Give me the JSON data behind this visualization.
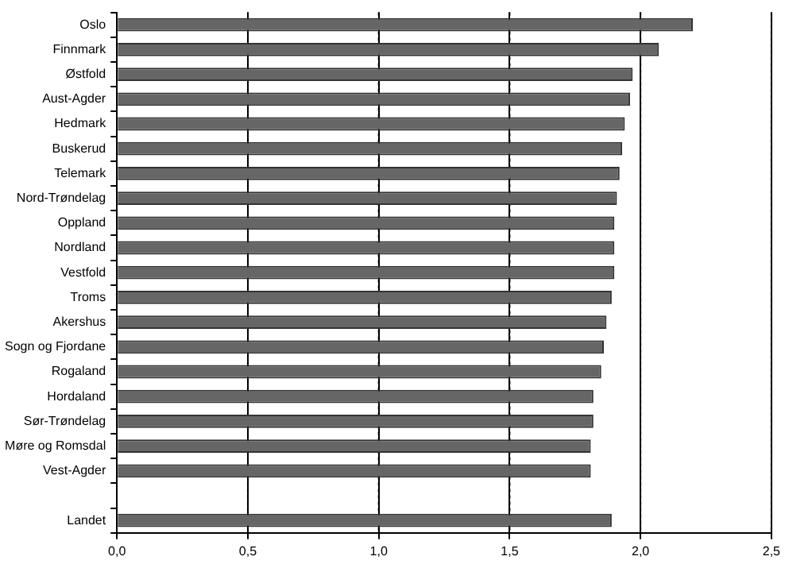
{
  "chart_data": {
    "type": "bar",
    "orientation": "horizontal",
    "categories": [
      "Oslo",
      "Finnmark",
      "Østfold",
      "Aust-Agder",
      "Hedmark",
      "Buskerud",
      "Telemark",
      "Nord-Trøndelag",
      "Oppland",
      "Nordland",
      "Vestfold",
      "Troms",
      "Akershus",
      "Sogn og Fjordane",
      "Rogaland",
      "Hordaland",
      "Sør-Trøndelag",
      "Møre og Romsdal",
      "Vest-Agder",
      null,
      "Landet"
    ],
    "values": [
      2.2,
      2.07,
      1.97,
      1.96,
      1.94,
      1.93,
      1.92,
      1.91,
      1.9,
      1.9,
      1.9,
      1.89,
      1.87,
      1.86,
      1.85,
      1.82,
      1.82,
      1.81,
      1.81,
      null,
      1.89
    ],
    "color": "#666666",
    "xlim": [
      0,
      2.5
    ],
    "xticks": [
      {
        "value": 0,
        "label": "0,0"
      },
      {
        "value": 0.5,
        "label": "0,5"
      },
      {
        "value": 1,
        "label": "1,0"
      },
      {
        "value": 1.5,
        "label": "1,5"
      },
      {
        "value": 2,
        "label": "2,0"
      },
      {
        "value": 2.5,
        "label": "2,5"
      }
    ],
    "grid": "x",
    "line_style": "dotted"
  }
}
